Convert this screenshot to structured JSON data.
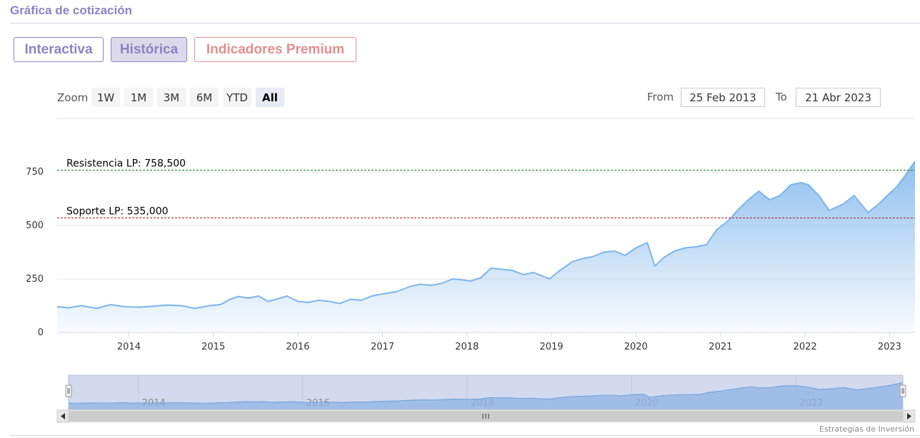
{
  "header": {
    "title": "Gráfica de cotización"
  },
  "tabs": [
    {
      "label": "Interactiva",
      "active": false
    },
    {
      "label": "Histórica",
      "active": true
    },
    {
      "label": "Indicadores Premium",
      "active": false
    }
  ],
  "range_selector": {
    "zoom_label": "Zoom",
    "buttons": [
      "1W",
      "1M",
      "3M",
      "6M",
      "YTD",
      "All"
    ],
    "selected": "All",
    "from_label": "From",
    "from_value": "25 Feb 2013",
    "to_label": "To",
    "to_value": "21 Abr 2023"
  },
  "credits": "Estrategias de Inversión",
  "colors": {
    "accent": "#8a84c4",
    "premium": "#e38d8d",
    "series_line": "#7cb5ec",
    "resistance": "#1a7a1a",
    "support": "#b01818"
  },
  "chart_data": {
    "type": "area",
    "title": "",
    "xlabel": "",
    "ylabel": "",
    "x_range": [
      "2013-02-25",
      "2023-04-21"
    ],
    "x_tick_labels": [
      "2014",
      "2015",
      "2016",
      "2017",
      "2018",
      "2019",
      "2020",
      "2021",
      "2022",
      "2023"
    ],
    "navigator_tick_labels": [
      "2014",
      "2016",
      "2018",
      "2020",
      "2022"
    ],
    "y_ticks": [
      0,
      250,
      500,
      750
    ],
    "ylim": [
      0,
      1000
    ],
    "grid": true,
    "series": [
      {
        "x": [
          "2013-02-25",
          "2013-04-15",
          "2013-06-10",
          "2013-08-15",
          "2013-10-15",
          "2013-12-15",
          "2014-02-15",
          "2014-04-15",
          "2014-06-15",
          "2014-08-15",
          "2014-10-15",
          "2014-12-15",
          "2015-02-01",
          "2015-03-15",
          "2015-04-20",
          "2015-06-01",
          "2015-07-15",
          "2015-08-25",
          "2015-10-01",
          "2015-11-15",
          "2016-01-01",
          "2016-02-15",
          "2016-04-01",
          "2016-05-15",
          "2016-07-01",
          "2016-08-15",
          "2016-10-01",
          "2016-11-15",
          "2017-01-01",
          "2017-03-01",
          "2017-05-01",
          "2017-06-15",
          "2017-08-01",
          "2017-09-15",
          "2017-11-01",
          "2017-12-15",
          "2018-01-15",
          "2018-03-01",
          "2018-04-15",
          "2018-06-01",
          "2018-07-15",
          "2018-09-01",
          "2018-10-15",
          "2018-12-24",
          "2019-02-01",
          "2019-04-01",
          "2019-05-15",
          "2019-07-01",
          "2019-08-15",
          "2019-10-01",
          "2019-11-15",
          "2020-01-01",
          "2020-02-19",
          "2020-03-23",
          "2020-05-01",
          "2020-06-15",
          "2020-08-01",
          "2020-09-15",
          "2020-11-01",
          "2020-12-15",
          "2021-02-01",
          "2021-03-15",
          "2021-05-01",
          "2021-06-15",
          "2021-08-01",
          "2021-09-15",
          "2021-11-01",
          "2021-12-15",
          "2022-01-15",
          "2022-03-01",
          "2022-04-15",
          "2022-06-15",
          "2022-08-01",
          "2022-09-30",
          "2022-11-15",
          "2023-01-01",
          "2023-02-01",
          "2023-03-01",
          "2023-04-21"
        ],
        "values": [
          120,
          115,
          125,
          112,
          130,
          120,
          118,
          122,
          128,
          125,
          112,
          125,
          130,
          155,
          168,
          160,
          170,
          145,
          155,
          170,
          145,
          140,
          150,
          145,
          135,
          155,
          150,
          170,
          180,
          190,
          215,
          225,
          220,
          230,
          250,
          245,
          240,
          255,
          300,
          295,
          290,
          270,
          280,
          250,
          285,
          330,
          345,
          355,
          375,
          380,
          360,
          395,
          420,
          310,
          350,
          380,
          395,
          400,
          410,
          480,
          520,
          570,
          620,
          660,
          620,
          640,
          690,
          700,
          690,
          640,
          570,
          600,
          640,
          560,
          600,
          650,
          680,
          720,
          800
        ]
      }
    ],
    "annotations": [
      {
        "label": "Resistencia LP: 758,500",
        "value": 758.5
      },
      {
        "label": "Soporte LP: 535,000",
        "value": 535.0
      }
    ]
  }
}
